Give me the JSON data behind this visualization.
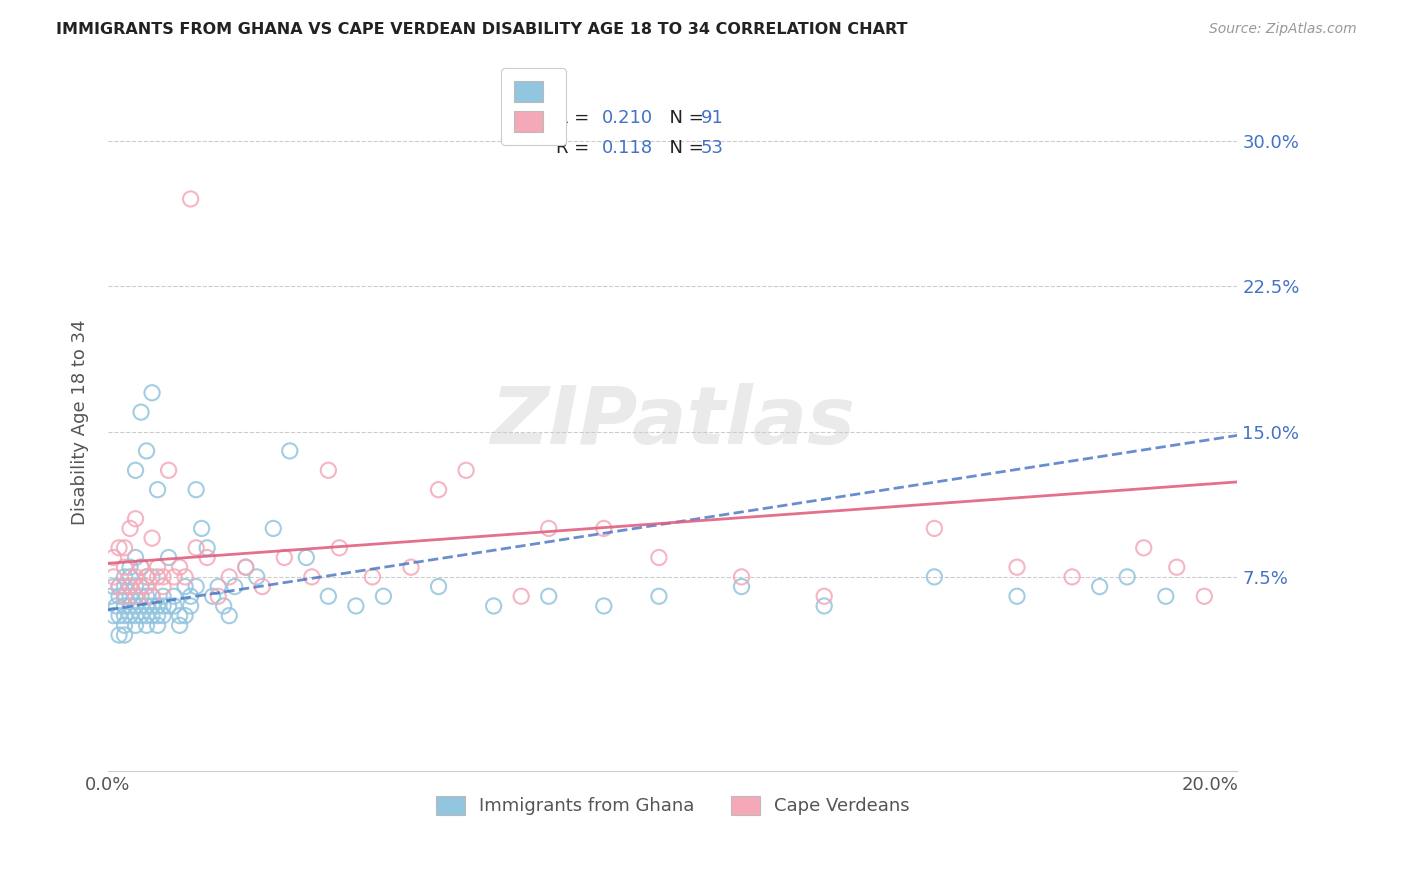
{
  "title": "IMMIGRANTS FROM GHANA VS CAPE VERDEAN DISABILITY AGE 18 TO 34 CORRELATION CHART",
  "source": "Source: ZipAtlas.com",
  "ylabel": "Disability Age 18 to 34",
  "xlim": [
    0.0,
    0.205
  ],
  "ylim": [
    -0.025,
    0.335
  ],
  "xticks": [
    0.0,
    0.05,
    0.1,
    0.15,
    0.2
  ],
  "xtick_labels": [
    "0.0%",
    "",
    "",
    "",
    "20.0%"
  ],
  "yticks": [
    0.075,
    0.15,
    0.225,
    0.3
  ],
  "ytick_labels": [
    "7.5%",
    "15.0%",
    "22.5%",
    "30.0%"
  ],
  "legend_label1": "Immigrants from Ghana",
  "legend_label2": "Cape Verdeans",
  "color_blue": "#92C5DE",
  "color_pink": "#F4A8B8",
  "color_blue_text": "#4472C4",
  "color_pink_text": "#E06090",
  "color_text_dark": "#333333",
  "watermark": "ZIPatlas",
  "ghana_trend_y_start": 0.058,
  "ghana_trend_y_end": 0.148,
  "cape_trend_y_start": 0.082,
  "cape_trend_y_end": 0.124,
  "ghana_x": [
    0.0005,
    0.001,
    0.001,
    0.0015,
    0.002,
    0.002,
    0.002,
    0.002,
    0.003,
    0.003,
    0.003,
    0.003,
    0.003,
    0.003,
    0.003,
    0.004,
    0.004,
    0.004,
    0.004,
    0.004,
    0.004,
    0.005,
    0.005,
    0.005,
    0.005,
    0.005,
    0.005,
    0.006,
    0.006,
    0.006,
    0.006,
    0.006,
    0.007,
    0.007,
    0.007,
    0.007,
    0.007,
    0.008,
    0.008,
    0.008,
    0.008,
    0.009,
    0.009,
    0.009,
    0.01,
    0.01,
    0.01,
    0.011,
    0.011,
    0.012,
    0.012,
    0.013,
    0.013,
    0.014,
    0.014,
    0.015,
    0.015,
    0.016,
    0.016,
    0.017,
    0.018,
    0.019,
    0.02,
    0.021,
    0.022,
    0.023,
    0.025,
    0.027,
    0.03,
    0.033,
    0.036,
    0.04,
    0.045,
    0.05,
    0.06,
    0.07,
    0.08,
    0.09,
    0.1,
    0.115,
    0.13,
    0.15,
    0.165,
    0.18,
    0.185,
    0.192,
    0.005,
    0.006,
    0.007,
    0.008,
    0.009
  ],
  "ghana_y": [
    0.065,
    0.055,
    0.07,
    0.06,
    0.065,
    0.055,
    0.07,
    0.045,
    0.06,
    0.055,
    0.065,
    0.07,
    0.075,
    0.05,
    0.045,
    0.055,
    0.06,
    0.065,
    0.07,
    0.075,
    0.08,
    0.05,
    0.055,
    0.06,
    0.065,
    0.07,
    0.085,
    0.055,
    0.06,
    0.065,
    0.07,
    0.08,
    0.05,
    0.055,
    0.06,
    0.065,
    0.075,
    0.055,
    0.06,
    0.065,
    0.075,
    0.05,
    0.055,
    0.06,
    0.055,
    0.06,
    0.065,
    0.06,
    0.085,
    0.06,
    0.065,
    0.05,
    0.055,
    0.055,
    0.07,
    0.06,
    0.065,
    0.07,
    0.12,
    0.1,
    0.09,
    0.065,
    0.07,
    0.06,
    0.055,
    0.07,
    0.08,
    0.075,
    0.1,
    0.14,
    0.085,
    0.065,
    0.06,
    0.065,
    0.07,
    0.06,
    0.065,
    0.06,
    0.065,
    0.07,
    0.06,
    0.075,
    0.065,
    0.07,
    0.075,
    0.065,
    0.13,
    0.16,
    0.14,
    0.17,
    0.12
  ],
  "cape_x": [
    0.001,
    0.001,
    0.002,
    0.002,
    0.003,
    0.003,
    0.003,
    0.004,
    0.004,
    0.005,
    0.005,
    0.005,
    0.006,
    0.006,
    0.007,
    0.007,
    0.008,
    0.008,
    0.009,
    0.009,
    0.01,
    0.01,
    0.011,
    0.012,
    0.013,
    0.014,
    0.015,
    0.016,
    0.018,
    0.02,
    0.022,
    0.025,
    0.028,
    0.032,
    0.037,
    0.042,
    0.048,
    0.055,
    0.065,
    0.075,
    0.09,
    0.1,
    0.115,
    0.13,
    0.15,
    0.165,
    0.175,
    0.188,
    0.194,
    0.199,
    0.04,
    0.06,
    0.08
  ],
  "cape_y": [
    0.075,
    0.085,
    0.07,
    0.09,
    0.065,
    0.08,
    0.09,
    0.07,
    0.1,
    0.065,
    0.075,
    0.105,
    0.07,
    0.08,
    0.07,
    0.075,
    0.065,
    0.095,
    0.075,
    0.08,
    0.07,
    0.075,
    0.13,
    0.075,
    0.08,
    0.075,
    0.27,
    0.09,
    0.085,
    0.065,
    0.075,
    0.08,
    0.07,
    0.085,
    0.075,
    0.09,
    0.075,
    0.08,
    0.13,
    0.065,
    0.1,
    0.085,
    0.075,
    0.065,
    0.1,
    0.08,
    0.075,
    0.09,
    0.08,
    0.065,
    0.13,
    0.12,
    0.1
  ]
}
